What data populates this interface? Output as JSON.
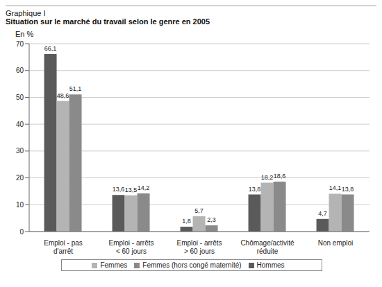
{
  "chart_data": {
    "type": "bar",
    "title": "Situation sur le marché du travail selon le genre en 2005",
    "subtitle": "Graphique I",
    "y_label": "En %",
    "categories": [
      "Emploi - pas d'arrêt",
      "Emploi - arrêts < 60 jours",
      "Emploi - arrêts > 60 jours",
      "Chômage/activité réduite",
      "Non emploi"
    ],
    "series": [
      {
        "name": "Hommes",
        "color": "#5a5a5a",
        "values": [
          66.1,
          13.6,
          1.8,
          13.8,
          4.7
        ],
        "value_labels": [
          "66,1",
          "13,6",
          "1,8",
          "13,8",
          "4,7"
        ]
      },
      {
        "name": "Femmes",
        "color": "#b4b4b4",
        "values": [
          48.6,
          13.5,
          5.7,
          18.2,
          14.1
        ],
        "value_labels": [
          "48,6",
          "13,5",
          "5,7",
          "18,2",
          "14,1"
        ]
      },
      {
        "name": "Femmes (hors congé maternité)",
        "color": "#8a8a8a",
        "values": [
          51.1,
          14.2,
          2.3,
          18.6,
          13.8
        ],
        "value_labels": [
          "51,1",
          "14,2",
          "2,3",
          "18,6",
          "13,8"
        ]
      }
    ],
    "ylim": [
      0,
      70
    ],
    "yticks": [
      0,
      10,
      20,
      30,
      40,
      50,
      60,
      70
    ],
    "grid": true,
    "data_labels": true,
    "legend": "bottom"
  }
}
